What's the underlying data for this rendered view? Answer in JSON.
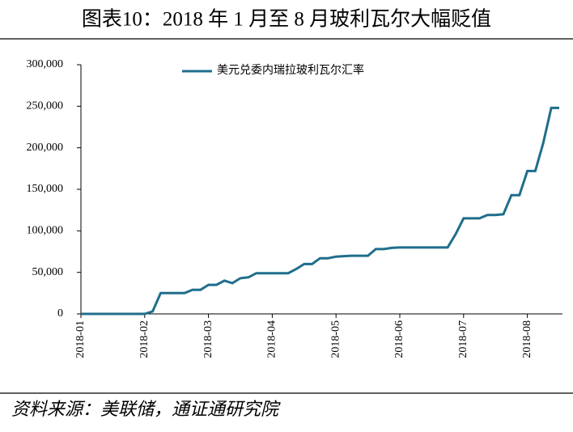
{
  "chart_data": {
    "type": "line",
    "title": "图表10：2018 年 1 月至 8 月玻利瓦尔大幅贬值",
    "source": "资料来源：美联储，通证通研究院",
    "categories": [
      "2018-01",
      null,
      null,
      null,
      null,
      null,
      null,
      null,
      "2018-02",
      null,
      null,
      null,
      null,
      null,
      null,
      null,
      "2018-03",
      null,
      null,
      null,
      null,
      null,
      null,
      null,
      "2018-04",
      null,
      null,
      null,
      null,
      null,
      null,
      null,
      "2018-05",
      null,
      null,
      null,
      null,
      null,
      null,
      null,
      "2018-06",
      null,
      null,
      null,
      null,
      null,
      null,
      null,
      "2018-07",
      null,
      null,
      null,
      null,
      null,
      null,
      null,
      "2018-08",
      null,
      null,
      null,
      null
    ],
    "series": [
      {
        "name": "美元兑委内瑞拉玻利瓦尔汇率",
        "color": "#1f6e8c",
        "values": [
          0,
          0,
          0,
          0,
          0,
          0,
          0,
          0,
          0,
          3000,
          25000,
          25000,
          25000,
          25000,
          29000,
          29000,
          35000,
          35000,
          40000,
          37000,
          43000,
          44000,
          49000,
          49000,
          49000,
          49000,
          49000,
          54000,
          60000,
          60000,
          67000,
          67000,
          69000,
          69500,
          70000,
          70000,
          70000,
          78000,
          78000,
          79500,
          80000,
          80000,
          80000,
          80000,
          80000,
          80000,
          80000,
          96000,
          115000,
          115000,
          115000,
          119000,
          119000,
          120000,
          143000,
          143000,
          172000,
          172000,
          206000,
          248000,
          248000
        ]
      }
    ],
    "ylim": [
      0,
      300000
    ],
    "yticks": [
      0,
      {
        "value": 50000,
        "label": "50,000"
      },
      {
        "value": 100000,
        "label": "100,000"
      },
      {
        "value": 150000,
        "label": "150,000"
      },
      {
        "value": 200000,
        "label": "200,000"
      },
      {
        "value": 250000,
        "label": "250,000"
      },
      {
        "value": 300000,
        "label": "300,000"
      }
    ],
    "legend": "top"
  }
}
